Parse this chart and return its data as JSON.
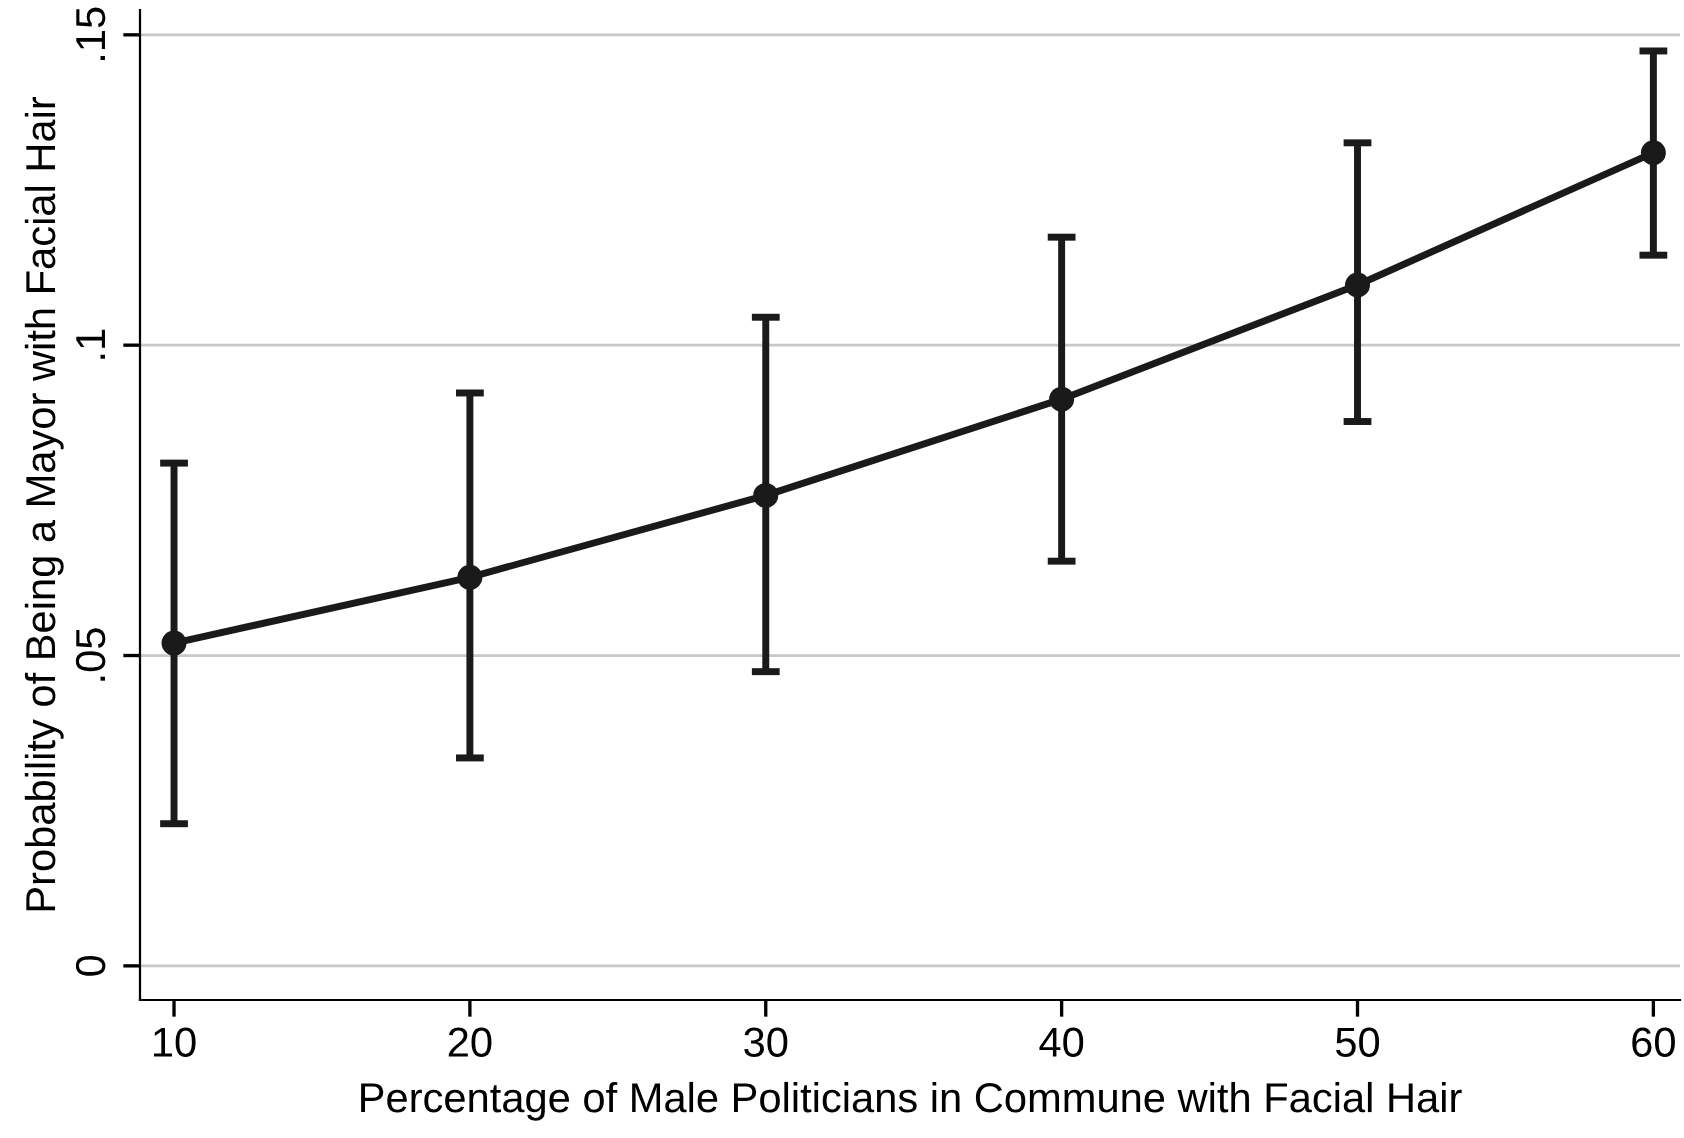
{
  "chart_data": {
    "type": "line",
    "xlabel": "Percentage of Male Politicians in Commune with Facial Hair",
    "ylabel": "Probability of Being a Mayor with Facial Hair",
    "x": [
      10,
      20,
      30,
      40,
      50,
      60
    ],
    "series": [
      {
        "color": "#1a1a1a",
        "values": [
          0.052,
          0.0626,
          0.0758,
          0.0913,
          0.1097,
          0.131
        ],
        "errors": [
          [
            0.0229,
            0.081
          ],
          [
            0.0335,
            0.0923
          ],
          [
            0.0474,
            0.1045
          ],
          [
            0.0652,
            0.1174
          ],
          [
            0.0877,
            0.1326
          ],
          [
            0.1145,
            0.1474
          ]
        ]
      }
    ],
    "xlim": [
      8.85,
      60.9
    ],
    "ylim": [
      -0.0055,
      0.154
    ],
    "xticks": [
      10,
      20,
      30,
      40,
      50,
      60
    ],
    "yticks": [
      {
        "value": 0,
        "label": "0"
      },
      {
        "value": 0.05,
        "label": ".05"
      },
      {
        "value": 0.1,
        "label": ".1"
      },
      {
        "value": 0.15,
        "label": ".15"
      }
    ],
    "grid": "y",
    "marker": "circle",
    "line_style": "solid"
  }
}
